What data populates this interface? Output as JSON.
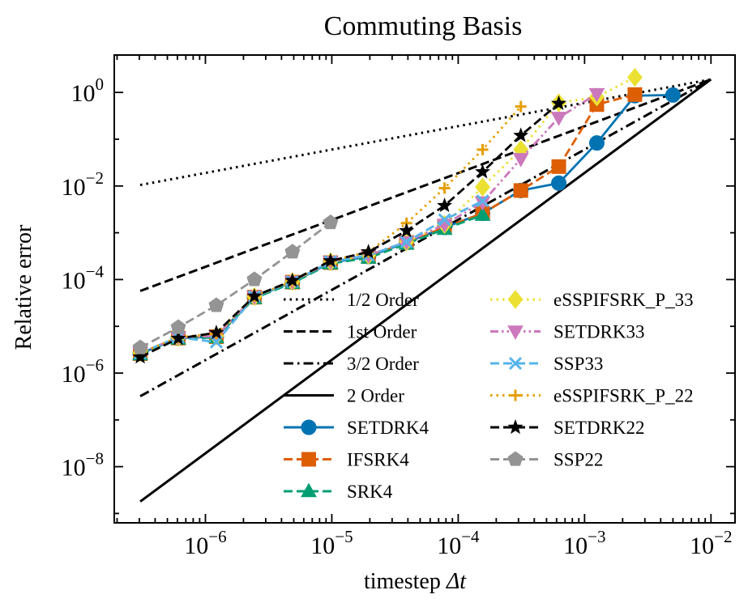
{
  "chart_data": {
    "type": "line",
    "title": "Commuting Basis",
    "xlabel": "timestep",
    "xlabel_symbol": "Δt",
    "ylabel": "Relative error",
    "xscale": "log",
    "yscale": "log",
    "xlim": [
      1.9e-07,
      0.0155
    ],
    "ylim": [
      6.3e-10,
      6.3
    ],
    "xticks": [
      {
        "value": 1e-06,
        "base": "10",
        "exp": "−6"
      },
      {
        "value": 1e-05,
        "base": "10",
        "exp": "−5"
      },
      {
        "value": 0.0001,
        "base": "10",
        "exp": "−4"
      },
      {
        "value": 0.001,
        "base": "10",
        "exp": "−3"
      },
      {
        "value": 0.01,
        "base": "10",
        "exp": "−2"
      }
    ],
    "yticks": [
      {
        "value": 1,
        "base": "10",
        "exp": "0"
      },
      {
        "value": 0.01,
        "base": "10",
        "exp": "−2"
      },
      {
        "value": 0.0001,
        "base": "10",
        "exp": "−4"
      },
      {
        "value": 1e-06,
        "base": "10",
        "exp": "−6"
      },
      {
        "value": 1e-08,
        "base": "10",
        "exp": "−8"
      }
    ],
    "grid": false,
    "legend_position": "lower-right",
    "reference_lines": [
      {
        "name": "1/2 Order",
        "dash": "dotted",
        "color": "#000000",
        "x": [
          3.05e-07,
          0.01
        ],
        "y": [
          0.0105,
          1.9
        ]
      },
      {
        "name": "1st Order",
        "dash": "dashed",
        "color": "#000000",
        "x": [
          3.05e-07,
          0.01
        ],
        "y": [
          5.7e-05,
          1.9
        ]
      },
      {
        "name": "3/2 Order",
        "dash": "dashdot",
        "color": "#000000",
        "x": [
          3.05e-07,
          0.01
        ],
        "y": [
          3.2e-07,
          1.9
        ]
      },
      {
        "name": "2 Order",
        "dash": "solid",
        "color": "#000000",
        "x": [
          3.05e-07,
          0.01
        ],
        "y": [
          1.8e-09,
          1.9
        ]
      }
    ],
    "series": [
      {
        "name": "SETDRK4",
        "color": "#0173B2",
        "dash": "solid",
        "marker": "circle",
        "x": [
          3.05e-07,
          6.1e-07,
          1.22e-06,
          2.44e-06,
          4.88e-06,
          9.77e-06,
          1.95e-05,
          3.9e-05,
          7.8e-05,
          0.000156,
          0.000313,
          0.000625,
          0.00125,
          0.0025,
          0.005
        ],
        "y": [
          2.6e-06,
          5.6e-06,
          6e-06,
          4.2e-05,
          8.8e-05,
          0.00023,
          0.00031,
          0.00062,
          0.0013,
          0.0026,
          0.008,
          0.0115,
          0.083,
          0.85,
          0.88
        ]
      },
      {
        "name": "IFSRK4",
        "color": "#DE5E03",
        "dash": "dashed",
        "marker": "square",
        "x": [
          3.05e-07,
          6.1e-07,
          1.22e-06,
          2.44e-06,
          4.88e-06,
          9.77e-06,
          1.95e-05,
          3.9e-05,
          7.8e-05,
          0.000156,
          0.000313,
          0.000625,
          0.00125,
          0.0025
        ],
        "y": [
          2.6e-06,
          5.6e-06,
          6e-06,
          4.2e-05,
          8.8e-05,
          0.00023,
          0.00031,
          0.00062,
          0.0013,
          0.0026,
          0.008,
          0.026,
          0.55,
          0.9
        ]
      },
      {
        "name": "SRK4",
        "color": "#029E73",
        "dash": "dashed",
        "marker": "triangle-up",
        "x": [
          3.05e-07,
          6.1e-07,
          1.22e-06,
          2.44e-06,
          4.88e-06,
          9.77e-06,
          1.95e-05,
          3.9e-05,
          7.8e-05,
          0.000156
        ],
        "y": [
          2.5e-06,
          5.4e-06,
          5.8e-06,
          4e-05,
          8.4e-05,
          0.00022,
          0.00029,
          0.00058,
          0.0012,
          0.0024
        ]
      },
      {
        "name": "eSSPIFSRK_P_33",
        "color": "#ECE133",
        "dash": "dotted",
        "marker": "diamond",
        "x": [
          3.05e-07,
          6.1e-07,
          1.22e-06,
          2.44e-06,
          4.88e-06,
          9.77e-06,
          1.95e-05,
          3.9e-05,
          7.8e-05,
          0.000156,
          0.000313,
          0.000625,
          0.00125,
          0.0025
        ],
        "y": [
          2.7e-06,
          5.8e-06,
          6.2e-06,
          4.3e-05,
          9e-05,
          0.00024,
          0.00033,
          0.00064,
          0.0015,
          0.0095,
          0.06,
          0.6,
          0.8,
          2.1
        ]
      },
      {
        "name": "SETDRK33",
        "color": "#CC78BC",
        "dash": "dashdotdot",
        "marker": "triangle-down",
        "x": [
          3.05e-07,
          6.1e-07,
          1.22e-06,
          2.44e-06,
          4.88e-06,
          9.77e-06,
          1.95e-05,
          3.9e-05,
          7.8e-05,
          0.000156,
          0.000313,
          0.000625,
          0.00125
        ],
        "y": [
          2.7e-06,
          5.8e-06,
          6.2e-06,
          4.3e-05,
          9e-05,
          0.00024,
          0.00033,
          0.00064,
          0.0015,
          0.0045,
          0.038,
          0.29,
          0.93
        ]
      },
      {
        "name": "SSP33",
        "color": "#56B4E9",
        "dash": "dashed",
        "marker": "x",
        "x": [
          3.05e-07,
          6.1e-07,
          1.22e-06,
          2.44e-06,
          4.88e-06,
          9.77e-06,
          1.95e-05,
          3.9e-05,
          7.8e-05,
          0.000156
        ],
        "y": [
          2.7e-06,
          5.8e-06,
          4.6e-06,
          4.3e-05,
          9e-05,
          0.00024,
          0.00033,
          0.00064,
          0.0019,
          0.0048
        ]
      },
      {
        "name": "eSSPIFSRK_P_22",
        "color": "#E69F00",
        "dash": "dotted",
        "marker": "plus",
        "x": [
          3.05e-07,
          6.1e-07,
          1.22e-06,
          2.44e-06,
          4.88e-06,
          9.77e-06,
          1.95e-05,
          3.9e-05,
          7.8e-05,
          0.000156,
          0.000313
        ],
        "y": [
          2.7e-06,
          5.8e-06,
          7e-06,
          4.4e-05,
          9.2e-05,
          0.00025,
          0.00039,
          0.0016,
          0.009,
          0.06,
          0.5
        ]
      },
      {
        "name": "SETDRK22",
        "color": "#000000",
        "dash": "dashed",
        "marker": "star",
        "x": [
          3.05e-07,
          6.1e-07,
          1.22e-06,
          2.44e-06,
          4.88e-06,
          9.77e-06,
          1.95e-05,
          3.9e-05,
          7.8e-05,
          0.000156,
          0.000313,
          0.000625
        ],
        "y": [
          2.2e-06,
          5.5e-06,
          7.3e-06,
          4.4e-05,
          9.5e-05,
          0.00025,
          0.00039,
          0.0011,
          0.0038,
          0.02,
          0.12,
          0.58
        ]
      },
      {
        "name": "SSP22",
        "color": "#949494",
        "dash": "dashed",
        "marker": "pentagon",
        "x": [
          3.05e-07,
          6.1e-07,
          1.22e-06,
          2.44e-06,
          4.88e-06,
          9.77e-06
        ],
        "y": [
          3.5e-06,
          9.5e-06,
          2.8e-05,
          0.0001,
          0.00039,
          0.00165
        ]
      }
    ],
    "legend": {
      "columns": [
        [
          "1/2 Order",
          "1st Order",
          "3/2 Order",
          "2 Order",
          "SETDRK4",
          "IFSRK4",
          "SRK4"
        ],
        [
          "eSSPIFSRK_P_33",
          "SETDRK33",
          "SSP33",
          "eSSPIFSRK_P_22",
          "SETDRK22",
          "SSP22"
        ]
      ]
    }
  }
}
